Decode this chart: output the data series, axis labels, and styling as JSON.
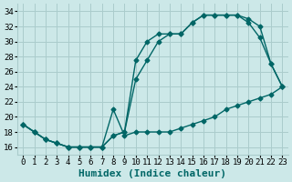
{
  "xlabel": "Humidex (Indice chaleur)",
  "bg_color": "#cce8e8",
  "grid_color": "#aacccc",
  "line_color": "#006666",
  "xlim": [
    -0.5,
    23.5
  ],
  "ylim": [
    15,
    35
  ],
  "xticks": [
    0,
    1,
    2,
    3,
    4,
    5,
    6,
    7,
    8,
    9,
    10,
    11,
    12,
    13,
    14,
    15,
    16,
    17,
    18,
    19,
    20,
    21,
    22,
    23
  ],
  "yticks": [
    16,
    18,
    20,
    22,
    24,
    26,
    28,
    30,
    32,
    34
  ],
  "curve1_x": [
    0,
    1,
    2,
    3,
    4,
    5,
    6,
    7,
    8,
    9,
    10,
    11,
    12,
    13,
    14,
    15,
    16,
    17,
    18,
    19,
    20,
    21,
    22,
    23
  ],
  "curve1_y": [
    19,
    18,
    17,
    16.5,
    16,
    16,
    16,
    16,
    21,
    17.5,
    18,
    18,
    18,
    18,
    18.5,
    19,
    19.5,
    20,
    21,
    21.5,
    22,
    22.5,
    23,
    24
  ],
  "curve2_x": [
    0,
    1,
    2,
    3,
    4,
    5,
    6,
    7,
    8,
    9,
    10,
    11,
    12,
    13,
    14,
    15,
    16,
    17,
    18,
    19,
    20,
    21,
    22,
    23
  ],
  "curve2_y": [
    19,
    18,
    17,
    16.5,
    16,
    16,
    16,
    16,
    17.5,
    18,
    27.5,
    30,
    31,
    31,
    31,
    32.5,
    33.5,
    33.5,
    33.5,
    33.5,
    32.5,
    30.5,
    27,
    24
  ],
  "curve3_x": [
    0,
    1,
    2,
    3,
    4,
    5,
    6,
    7,
    8,
    9,
    10,
    11,
    12,
    13,
    14,
    15,
    16,
    17,
    18,
    19,
    20,
    21,
    22,
    23
  ],
  "curve3_y": [
    19,
    18,
    17,
    16.5,
    16,
    16,
    16,
    16,
    17.5,
    18,
    25,
    27.5,
    30,
    31,
    31,
    32.5,
    33.5,
    33.5,
    33.5,
    33.5,
    33,
    32,
    27,
    24
  ],
  "font_family": "monospace",
  "xlabel_fontsize": 8,
  "tick_fontsize": 6.5
}
